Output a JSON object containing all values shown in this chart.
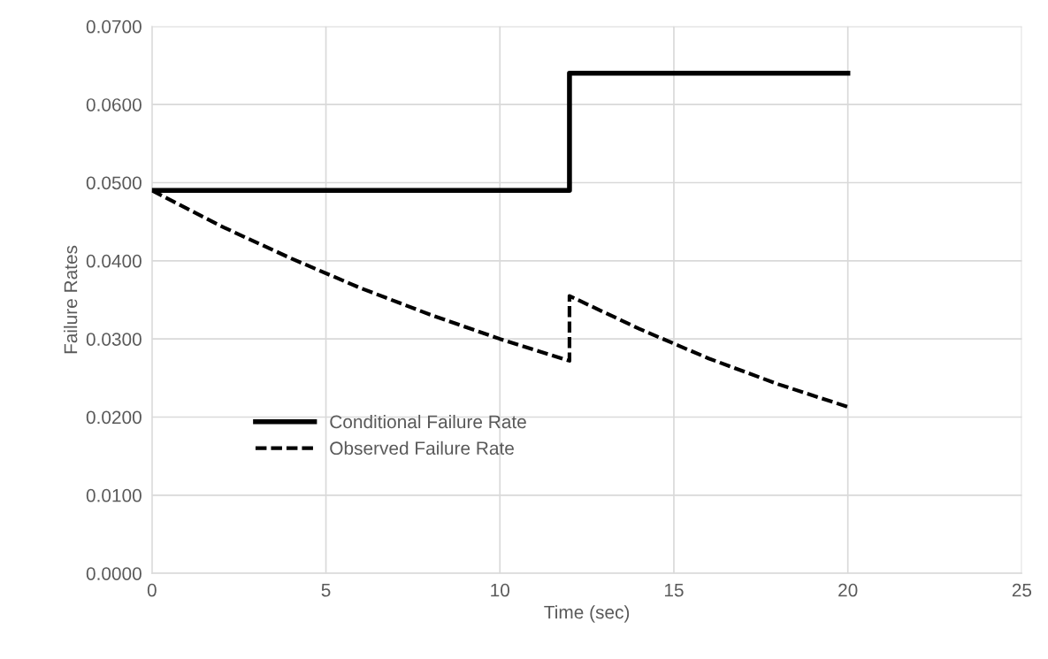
{
  "chart_data": {
    "type": "line",
    "xlabel": "Time (sec)",
    "ylabel": "Failure Rates",
    "xlim": [
      0,
      25
    ],
    "xticks": [
      0,
      5,
      10,
      15,
      20,
      25
    ],
    "ylim": [
      0,
      0.07
    ],
    "yticks": [
      {
        "value": 0,
        "label": "0.0000"
      },
      {
        "value": 0.01,
        "label": "0.0100"
      },
      {
        "value": 0.02,
        "label": "0.0200"
      },
      {
        "value": 0.03,
        "label": "0.0300"
      },
      {
        "value": 0.04,
        "label": "0.0400"
      },
      {
        "value": 0.05,
        "label": "0.0500"
      },
      {
        "value": 0.06,
        "label": "0.0600"
      },
      {
        "value": 0.07,
        "label": "0.0700"
      }
    ],
    "grid": true,
    "legend": "center left",
    "marker": "none",
    "series": [
      {
        "name": "Conditional Failure Rate",
        "color": "#000000",
        "line_style": "solid",
        "x": [
          0,
          12,
          12,
          20
        ],
        "values": [
          0.049,
          0.049,
          0.064,
          0.064
        ]
      },
      {
        "name": "Observed Failure Rate",
        "color": "#000000",
        "line_style": "dashed",
        "x": [
          0,
          2,
          4,
          6,
          8,
          10,
          12,
          12,
          14,
          16,
          18,
          20
        ],
        "values": [
          0.049,
          0.0444,
          0.0403,
          0.0365,
          0.0331,
          0.03,
          0.0272,
          0.0355,
          0.0313,
          0.0275,
          0.0242,
          0.0213
        ]
      }
    ]
  }
}
